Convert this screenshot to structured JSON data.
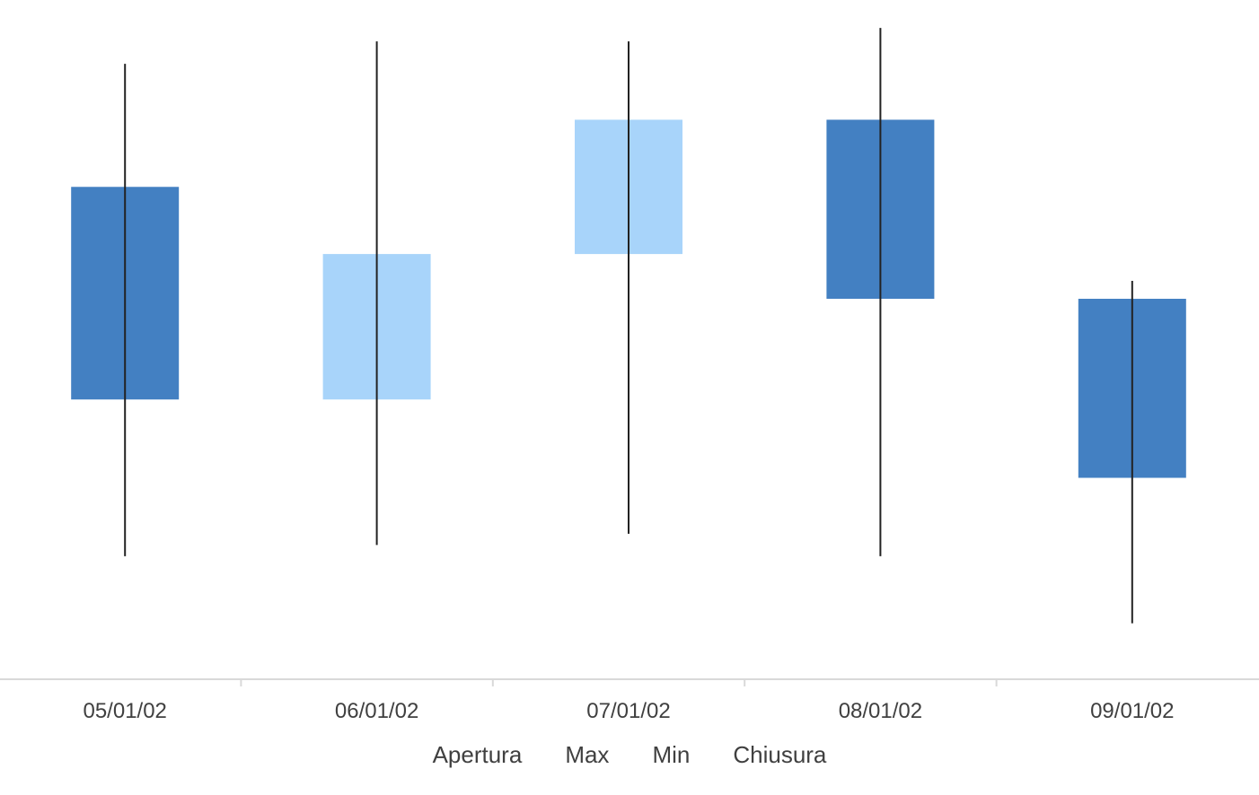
{
  "chart_data": {
    "type": "candlestick",
    "categories": [
      "05/01/02",
      "06/01/02",
      "07/01/02",
      "08/01/02",
      "09/01/02"
    ],
    "series": [
      {
        "name": "Apertura",
        "values": [
          44,
          25,
          38,
          50,
          34
        ]
      },
      {
        "name": "Max",
        "values": [
          55,
          57,
          57,
          58.2,
          35.6
        ]
      },
      {
        "name": "Min",
        "values": [
          11,
          12,
          13,
          11,
          5
        ]
      },
      {
        "name": "Chiusura",
        "values": [
          25,
          38,
          50,
          34,
          18
        ]
      }
    ],
    "ylim": [
      0,
      60.7
    ],
    "colors": {
      "down": "#4380c2",
      "up": "#a8d4fa",
      "wick": "#222222",
      "axis": "#d9d9d9",
      "text": "#404040"
    },
    "legend_position": "bottom"
  }
}
